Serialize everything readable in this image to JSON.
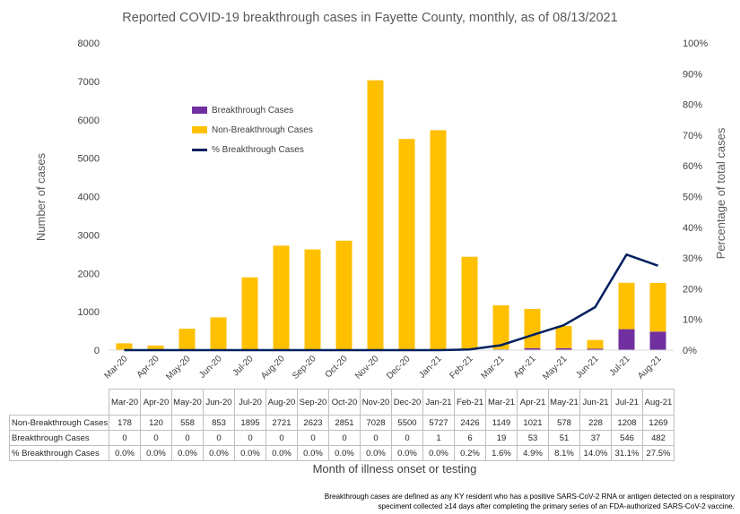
{
  "chart_data": {
    "type": "bar",
    "stacked": true,
    "title": "Reported COVID-19 breakthrough cases in Fayette County, monthly, as of 08/13/2021",
    "xlabel": "Month of illness onset or testing",
    "ylabel": "Number of cases",
    "y2label": "Percentage of total cases",
    "ylim": [
      0,
      8000
    ],
    "y2lim": [
      0,
      100
    ],
    "yticks": [
      "0",
      "1000",
      "2000",
      "3000",
      "4000",
      "5000",
      "6000",
      "7000",
      "8000"
    ],
    "y2ticks": [
      "0%",
      "10%",
      "20%",
      "30%",
      "40%",
      "50%",
      "60%",
      "70%",
      "80%",
      "90%",
      "100%"
    ],
    "categories": [
      "Mar-20",
      "Apr-20",
      "May-20",
      "Jun-20",
      "Jul-20",
      "Aug-20",
      "Sep-20",
      "Oct-20",
      "Nov-20",
      "Dec-20",
      "Jan-21",
      "Feb-21",
      "Mar-21",
      "Apr-21",
      "May-21",
      "Jun-21",
      "Jul-21",
      "Aug-21"
    ],
    "series": [
      {
        "name": "Breakthrough Cases",
        "kind": "bar",
        "color": "#7030a0",
        "values": [
          0,
          0,
          0,
          0,
          0,
          0,
          0,
          0,
          0,
          0,
          1,
          6,
          19,
          53,
          51,
          37,
          546,
          482
        ]
      },
      {
        "name": "Non-Breakthrough Cases",
        "kind": "bar",
        "color": "#ffc000",
        "values": [
          178,
          120,
          558,
          853,
          1895,
          2721,
          2623,
          2851,
          7028,
          5500,
          5727,
          2426,
          1149,
          1021,
          578,
          228,
          1208,
          1269
        ]
      },
      {
        "name": "% Breakthrough Cases",
        "kind": "line",
        "axis": "right",
        "color": "#002060",
        "values": [
          0,
          0,
          0,
          0,
          0,
          0,
          0,
          0,
          0,
          0,
          0,
          0.2,
          1.6,
          4.9,
          8.1,
          14.0,
          31.1,
          27.5
        ]
      }
    ],
    "legend_placement": "top-left",
    "grid": false
  },
  "table": {
    "headers": [
      "Mar-20",
      "Apr-20",
      "May-20",
      "Jun-20",
      "Jul-20",
      "Aug-20",
      "Sep-20",
      "Oct-20",
      "Nov-20",
      "Dec-20",
      "Jan-21",
      "Feb-21",
      "Mar-21",
      "Apr-21",
      "May-21",
      "Jun-21",
      "Jul-21",
      "Aug-21"
    ],
    "rows": [
      {
        "label": "Non-Breakthrough Cases",
        "cells": [
          "178",
          "120",
          "558",
          "853",
          "1895",
          "2721",
          "2623",
          "2851",
          "7028",
          "5500",
          "5727",
          "2426",
          "1149",
          "1021",
          "578",
          "228",
          "1208",
          "1269"
        ]
      },
      {
        "label": "Breakthrough Cases",
        "cells": [
          "0",
          "0",
          "0",
          "0",
          "0",
          "0",
          "0",
          "0",
          "0",
          "0",
          "1",
          "6",
          "19",
          "53",
          "51",
          "37",
          "546",
          "482"
        ]
      },
      {
        "label": "% Breakthrough Cases",
        "cells": [
          "0.0%",
          "0.0%",
          "0.0%",
          "0.0%",
          "0.0%",
          "0.0%",
          "0.0%",
          "0.0%",
          "0.0%",
          "0.0%",
          "0.0%",
          "0.2%",
          "1.6%",
          "4.9%",
          "8.1%",
          "14.0%",
          "31.1%",
          "27.5%"
        ]
      }
    ]
  },
  "footnote": {
    "line1": "Breakthrough cases are defined as any KY resident who has a positive SARS-CoV-2 RNA or antigen detected on a respiratory",
    "line2": "speciment collected ≥14 days after completing the primary series of an FDA-authorized SARS-CoV-2 vaccine."
  }
}
